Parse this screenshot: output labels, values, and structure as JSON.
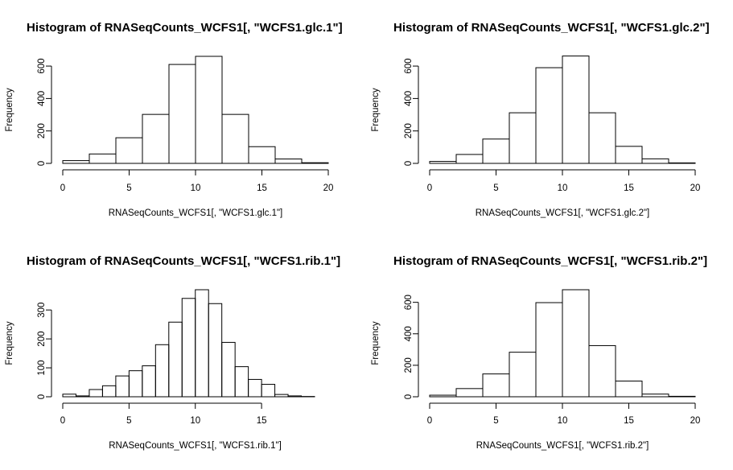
{
  "chart_data": [
    {
      "type": "histogram",
      "title": "Histogram of RNASeqCounts_WCFS1[, \"WCFS1.glc.1\"]",
      "xlabel": "RNASeqCounts_WCFS1[, \"WCFS1.glc.1\"]",
      "ylabel": "Frequency",
      "xlim": [
        0,
        20
      ],
      "ylim": [
        0,
        660
      ],
      "xticks": [
        "0",
        "5",
        "10",
        "15",
        "20"
      ],
      "yticks": [
        "0",
        "200",
        "400",
        "600"
      ],
      "bins": [
        {
          "x0": 0,
          "x1": 2,
          "count": 17
        },
        {
          "x0": 2,
          "x1": 4,
          "count": 58
        },
        {
          "x0": 4,
          "x1": 6,
          "count": 158
        },
        {
          "x0": 6,
          "x1": 8,
          "count": 302
        },
        {
          "x0": 8,
          "x1": 10,
          "count": 610
        },
        {
          "x0": 10,
          "x1": 12,
          "count": 660
        },
        {
          "x0": 12,
          "x1": 14,
          "count": 302
        },
        {
          "x0": 14,
          "x1": 16,
          "count": 103
        },
        {
          "x0": 16,
          "x1": 18,
          "count": 27
        },
        {
          "x0": 18,
          "x1": 20,
          "count": 4
        }
      ]
    },
    {
      "type": "histogram",
      "title": "Histogram of RNASeqCounts_WCFS1[, \"WCFS1.glc.2\"]",
      "xlabel": "RNASeqCounts_WCFS1[, \"WCFS1.glc.2\"]",
      "ylabel": "Frequency",
      "xlim": [
        0,
        20
      ],
      "ylim": [
        0,
        660
      ],
      "xticks": [
        "0",
        "5",
        "10",
        "15",
        "20"
      ],
      "yticks": [
        "0",
        "200",
        "400",
        "600"
      ],
      "bins": [
        {
          "x0": 0,
          "x1": 2,
          "count": 12
        },
        {
          "x0": 2,
          "x1": 4,
          "count": 55
        },
        {
          "x0": 4,
          "x1": 6,
          "count": 150
        },
        {
          "x0": 6,
          "x1": 8,
          "count": 312
        },
        {
          "x0": 8,
          "x1": 10,
          "count": 590
        },
        {
          "x0": 10,
          "x1": 12,
          "count": 662
        },
        {
          "x0": 12,
          "x1": 14,
          "count": 312
        },
        {
          "x0": 14,
          "x1": 16,
          "count": 105
        },
        {
          "x0": 16,
          "x1": 18,
          "count": 28
        },
        {
          "x0": 18,
          "x1": 20,
          "count": 3
        }
      ]
    },
    {
      "type": "histogram",
      "title": "Histogram of RNASeqCounts_WCFS1[, \"WCFS1.rib.1\"]",
      "xlabel": "RNASeqCounts_WCFS1[, \"WCFS1.rib.1\"]",
      "ylabel": "Frequency",
      "xlim": [
        0,
        19
      ],
      "ylim": [
        0,
        370
      ],
      "xticks": [
        "0",
        "5",
        "10",
        "15"
      ],
      "yticks": [
        "0",
        "100",
        "200",
        "300"
      ],
      "bins": [
        {
          "x0": 0,
          "x1": 1,
          "count": 9
        },
        {
          "x0": 1,
          "x1": 2,
          "count": 3
        },
        {
          "x0": 2,
          "x1": 3,
          "count": 25
        },
        {
          "x0": 3,
          "x1": 4,
          "count": 38
        },
        {
          "x0": 4,
          "x1": 5,
          "count": 72
        },
        {
          "x0": 5,
          "x1": 6,
          "count": 90
        },
        {
          "x0": 6,
          "x1": 7,
          "count": 107
        },
        {
          "x0": 7,
          "x1": 8,
          "count": 180
        },
        {
          "x0": 8,
          "x1": 9,
          "count": 258
        },
        {
          "x0": 9,
          "x1": 10,
          "count": 340
        },
        {
          "x0": 10,
          "x1": 11,
          "count": 370
        },
        {
          "x0": 11,
          "x1": 12,
          "count": 322
        },
        {
          "x0": 12,
          "x1": 13,
          "count": 188
        },
        {
          "x0": 13,
          "x1": 14,
          "count": 104
        },
        {
          "x0": 14,
          "x1": 15,
          "count": 60
        },
        {
          "x0": 15,
          "x1": 16,
          "count": 43
        },
        {
          "x0": 16,
          "x1": 17,
          "count": 8
        },
        {
          "x0": 17,
          "x1": 18,
          "count": 3
        },
        {
          "x0": 18,
          "x1": 19,
          "count": 1
        }
      ]
    },
    {
      "type": "histogram",
      "title": "Histogram of RNASeqCounts_WCFS1[, \"WCFS1.rib.2\"]",
      "xlabel": "RNASeqCounts_WCFS1[, \"WCFS1.rib.2\"]",
      "ylabel": "Frequency",
      "xlim": [
        0,
        20
      ],
      "ylim": [
        0,
        680
      ],
      "xticks": [
        "0",
        "5",
        "10",
        "15",
        "20"
      ],
      "yticks": [
        "0",
        "200",
        "400",
        "600"
      ],
      "bins": [
        {
          "x0": 0,
          "x1": 2,
          "count": 10
        },
        {
          "x0": 2,
          "x1": 4,
          "count": 52
        },
        {
          "x0": 4,
          "x1": 6,
          "count": 145
        },
        {
          "x0": 6,
          "x1": 8,
          "count": 283
        },
        {
          "x0": 8,
          "x1": 10,
          "count": 598
        },
        {
          "x0": 10,
          "x1": 12,
          "count": 680
        },
        {
          "x0": 12,
          "x1": 14,
          "count": 325
        },
        {
          "x0": 14,
          "x1": 16,
          "count": 100
        },
        {
          "x0": 16,
          "x1": 18,
          "count": 17
        },
        {
          "x0": 18,
          "x1": 20,
          "count": 3
        }
      ]
    }
  ]
}
